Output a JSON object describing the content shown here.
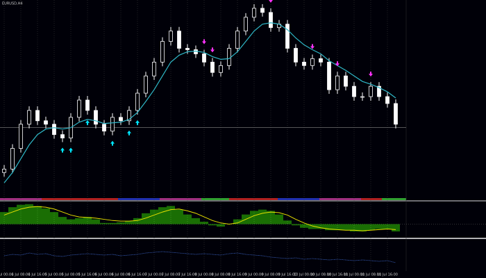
{
  "chart_data": [
    {
      "type": "candlestick",
      "title": "EURUSD,H4",
      "color": "#ffffff",
      "down_color": "#ffffff",
      "categories": [
        "4 Jul 00:00",
        null,
        "4 Jul 08:00",
        null,
        "4 Jul 16:00",
        null,
        "5 Jul 00:00",
        null,
        "5 Jul 08:00",
        null,
        "5 Jul 16:00",
        null,
        "6 Jul 00:00",
        null,
        "6 Jul 08:00",
        null,
        "6 Jul 16:00",
        null,
        "7 Jul 00:00",
        null,
        "7 Jul 08:00",
        null,
        "7 Jul 16:00",
        null,
        "8 Jul 00:00",
        null,
        "8 Jul 08:00",
        null,
        "8 Jul 16:00",
        null,
        "9 Jul 00:00",
        null,
        "9 Jul 08:00",
        null,
        "9 Jul 16:00",
        null,
        "10 Jul 00:00",
        null,
        "10 Jul 08:00",
        null,
        "10 Jul 16:00",
        null,
        "11 Jul 00:00",
        null,
        "11 Jul 08:00",
        null,
        "11 Jul 16:00",
        null
      ],
      "open": [
        35,
        40,
        70,
        105,
        125,
        110,
        105,
        90,
        85,
        115,
        140,
        125,
        105,
        95,
        115,
        110,
        125,
        150,
        175,
        195,
        225,
        240,
        215,
        213,
        207,
        195,
        180,
        190,
        215,
        240,
        260,
        273,
        267,
        245,
        250,
        215,
        195,
        190,
        200,
        195,
        155,
        175,
        160,
        145,
        145,
        160,
        145,
        135
      ],
      "high": [
        46,
        76,
        111,
        131,
        131,
        116,
        111,
        96,
        121,
        146,
        146,
        131,
        111,
        121,
        121,
        131,
        156,
        181,
        201,
        231,
        246,
        246,
        221,
        219,
        213,
        201,
        196,
        221,
        246,
        266,
        279,
        279,
        273,
        256,
        256,
        221,
        201,
        206,
        206,
        201,
        181,
        181,
        166,
        151,
        166,
        166,
        151,
        141
      ],
      "low": [
        29,
        34,
        64,
        99,
        104,
        99,
        84,
        79,
        79,
        109,
        119,
        99,
        89,
        89,
        104,
        104,
        119,
        144,
        169,
        189,
        219,
        209,
        207,
        201,
        189,
        174,
        174,
        184,
        209,
        234,
        254,
        261,
        239,
        239,
        209,
        189,
        184,
        184,
        189,
        149,
        149,
        154,
        139,
        139,
        139,
        139,
        129,
        99
      ],
      "close": [
        40,
        70,
        105,
        125,
        110,
        105,
        90,
        85,
        115,
        140,
        125,
        105,
        95,
        115,
        110,
        125,
        150,
        175,
        195,
        225,
        240,
        215,
        213,
        207,
        195,
        180,
        190,
        215,
        240,
        260,
        273,
        267,
        245,
        250,
        215,
        195,
        190,
        200,
        195,
        155,
        175,
        160,
        145,
        145,
        160,
        145,
        135,
        105
      ],
      "series": [
        {
          "color": "#2fb8c8",
          "values": [
            20,
            35,
            55,
            75,
            90,
            98,
            100,
            98,
            100,
            108,
            112,
            110,
            106,
            107,
            108,
            112,
            122,
            138,
            155,
            175,
            195,
            205,
            210,
            211,
            209,
            203,
            199,
            200,
            210,
            225,
            240,
            250,
            252,
            250,
            242,
            230,
            220,
            213,
            207,
            197,
            190,
            183,
            175,
            167,
            163,
            158,
            152,
            143
          ]
        }
      ],
      "buy_signals": [
        7,
        8,
        10,
        13,
        15,
        16
      ],
      "buy_color": "#00e5ff",
      "sell_signals": [
        24,
        25,
        32,
        37,
        40,
        44
      ],
      "sell_color": "#ff33ff",
      "hline": 100,
      "ylim": [
        0,
        285
      ]
    },
    {
      "type": "bar",
      "ylim": [
        -20,
        35
      ],
      "zero": 0,
      "series": [
        {
          "color": "#33dd00",
          "values": [
            20,
            28,
            32,
            33,
            30,
            26,
            20,
            12,
            8,
            10,
            12,
            8,
            2,
            2,
            3,
            5,
            10,
            18,
            24,
            28,
            30,
            24,
            16,
            10,
            4,
            -2,
            -4,
            0,
            8,
            16,
            22,
            24,
            22,
            16,
            6,
            -2,
            -6,
            -8,
            -8,
            -10,
            -10,
            -10,
            -12,
            -12,
            -10,
            -8,
            -8,
            -12
          ]
        },
        {
          "color": "#e8e000",
          "kind": "line",
          "values": [
            15,
            20,
            25,
            28,
            29,
            28,
            25,
            20,
            15,
            12,
            11,
            10,
            8,
            6,
            5,
            5,
            6,
            10,
            15,
            20,
            24,
            25,
            22,
            18,
            12,
            6,
            2,
            0,
            2,
            8,
            14,
            18,
            20,
            19,
            15,
            8,
            2,
            -3,
            -6,
            -8,
            -9,
            -10,
            -10,
            -11,
            -10,
            -9,
            -8,
            -9
          ]
        }
      ]
    },
    {
      "type": "line",
      "ylim": [
        0,
        40
      ],
      "series": [
        {
          "color": "#3355aa",
          "values": [
            20,
            22,
            21,
            24,
            22,
            23,
            20,
            19,
            21,
            22,
            23,
            22,
            21,
            22,
            20,
            21,
            22,
            24,
            25,
            26,
            25,
            24,
            23,
            22,
            23,
            22,
            21,
            23,
            24,
            22,
            21,
            20,
            18,
            17,
            16,
            17,
            15,
            16,
            15,
            14,
            15,
            14,
            13,
            14,
            13,
            12,
            13,
            10
          ]
        }
      ]
    }
  ]
}
